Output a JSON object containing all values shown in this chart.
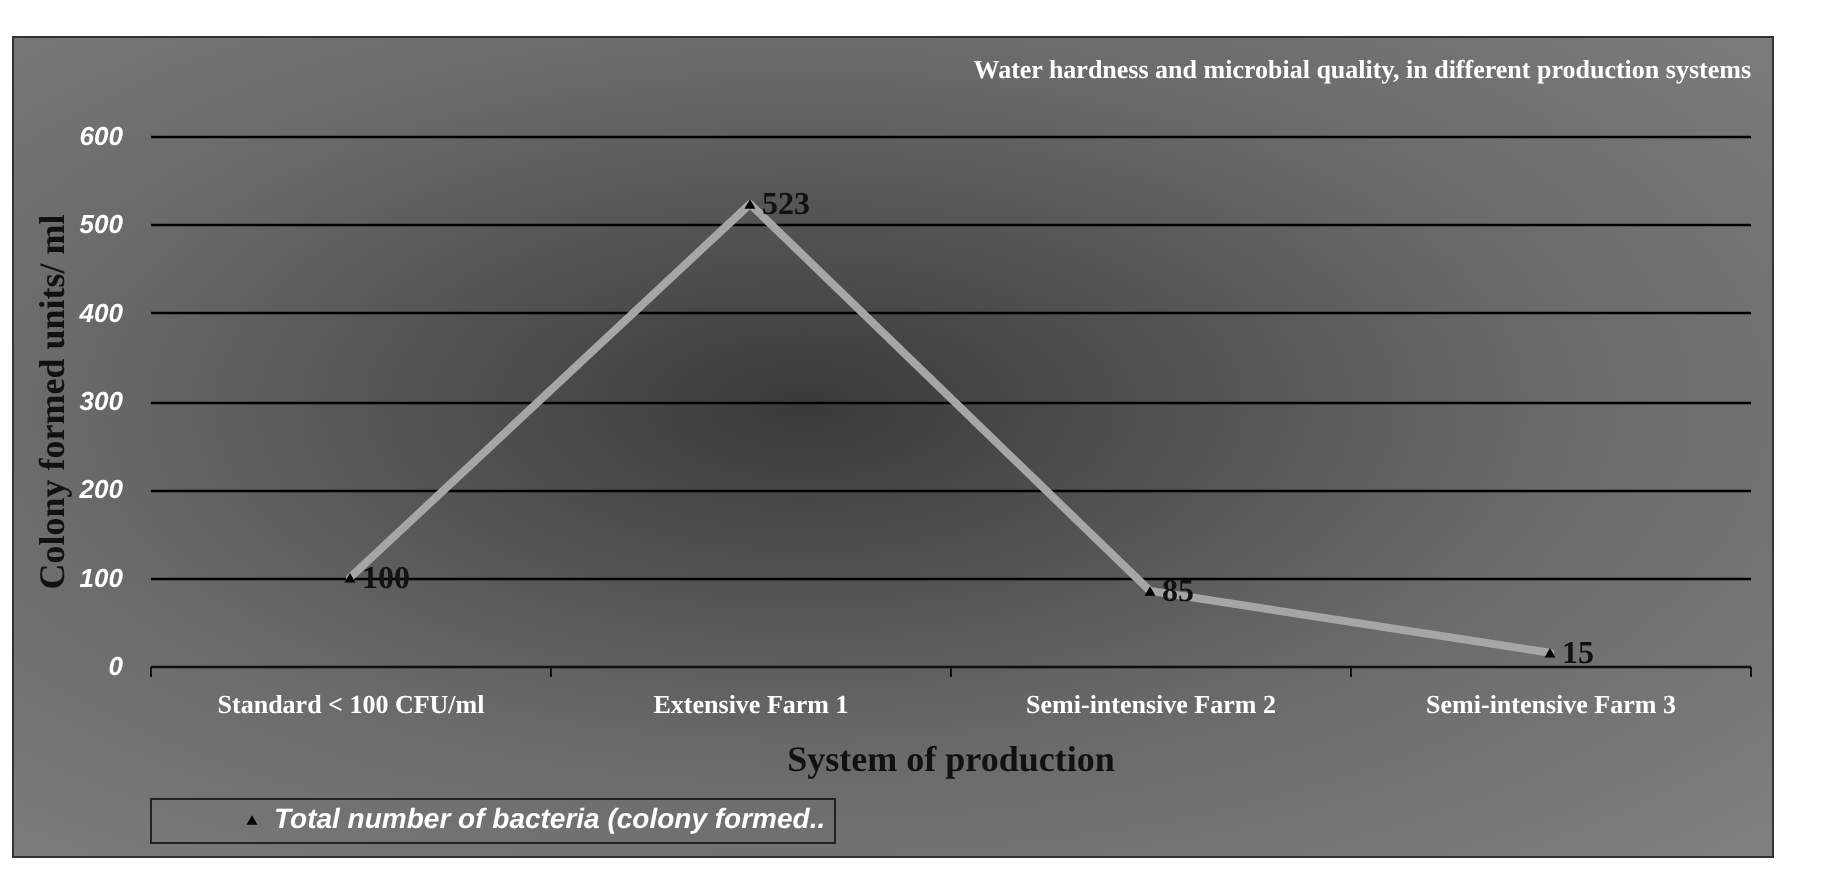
{
  "chart_data": {
    "type": "line",
    "title": "Water hardness and microbial quality, in different production systems",
    "xlabel": "System of production",
    "ylabel": "Colony formed units/ ml",
    "categories": [
      "Standard < 100 CFU/ml",
      "Extensive Farm 1",
      "Semi-intensive Farm 2",
      "Semi-intensive Farm 3"
    ],
    "series": [
      {
        "name": "Total number of bacteria (colony formed..",
        "color": "#a6a6a6",
        "values": [
          100,
          523,
          85,
          15
        ]
      }
    ],
    "ylim": [
      0,
      600
    ],
    "yticks": [
      0,
      100,
      200,
      300,
      400,
      500,
      600
    ],
    "grid": "y",
    "legend": "bottom",
    "marker": "triangle",
    "data_labels": true
  }
}
